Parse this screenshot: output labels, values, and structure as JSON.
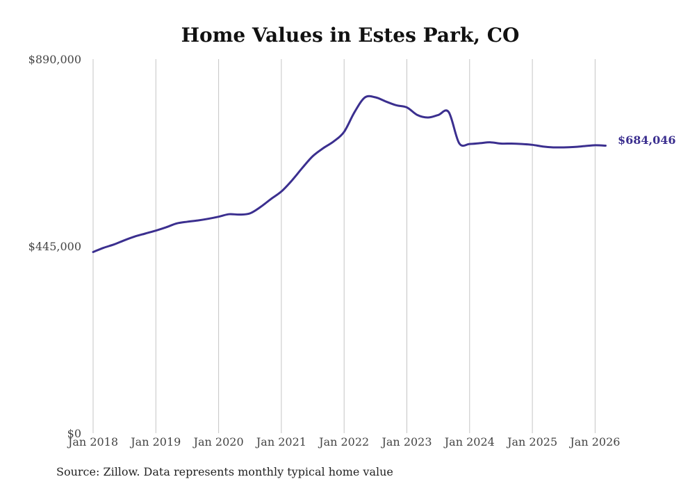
{
  "chart_data": {
    "type": "line",
    "title": "Home Values in Estes Park, CO",
    "source": "Source: Zillow. Data represents monthly typical home value",
    "ylim": [
      0,
      890000
    ],
    "y_ticks": [
      {
        "value": 0,
        "label": "$0"
      },
      {
        "value": 445000,
        "label": "$445,000"
      },
      {
        "value": 890000,
        "label": "$890,000"
      }
    ],
    "x_ticks": [
      {
        "value": 2018,
        "label": "Jan 2018"
      },
      {
        "value": 2019,
        "label": "Jan 2019"
      },
      {
        "value": 2020,
        "label": "Jan 2020"
      },
      {
        "value": 2021,
        "label": "Jan 2021"
      },
      {
        "value": 2022,
        "label": "Jan 2022"
      },
      {
        "value": 2023,
        "label": "Jan 2023"
      },
      {
        "value": 2024,
        "label": "Jan 2024"
      },
      {
        "value": 2025,
        "label": "Jan 2025"
      },
      {
        "value": 2026,
        "label": "Jan 2026"
      }
    ],
    "xlim": [
      2018,
      2026.167
    ],
    "grid": "vertical",
    "line_color": "#3b2f8f",
    "end_label": "$684,046",
    "series": [
      {
        "name": "Typical home value",
        "x": [
          2018.0,
          2018.1667,
          2018.3333,
          2018.5,
          2018.6667,
          2018.8333,
          2019.0,
          2019.1667,
          2019.3333,
          2019.5,
          2019.6667,
          2019.8333,
          2020.0,
          2020.1667,
          2020.3333,
          2020.5,
          2020.6667,
          2020.8333,
          2021.0,
          2021.1667,
          2021.3333,
          2021.5,
          2021.6667,
          2021.8333,
          2022.0,
          2022.1667,
          2022.3333,
          2022.5,
          2022.6667,
          2022.8333,
          2023.0,
          2023.1667,
          2023.3333,
          2023.5,
          2023.6667,
          2023.8333,
          2024.0,
          2024.1667,
          2024.3333,
          2024.5,
          2024.6667,
          2024.8333,
          2025.0,
          2025.1667,
          2025.3333,
          2025.5,
          2025.6667,
          2025.8333,
          2026.0,
          2026.1667
        ],
        "values": [
          431000,
          441000,
          449000,
          459000,
          468000,
          475000,
          482000,
          490000,
          499000,
          503000,
          506000,
          510000,
          515000,
          521000,
          520000,
          523000,
          538000,
          557000,
          575000,
          601000,
          631000,
          659000,
          678000,
          694000,
          717000,
          764000,
          799000,
          799000,
          789000,
          780000,
          775000,
          757000,
          751000,
          757000,
          764000,
          690000,
          688000,
          690000,
          692000,
          689000,
          689000,
          688000,
          686000,
          682000,
          680000,
          680000,
          681000,
          683000,
          685000,
          684046
        ]
      }
    ]
  }
}
